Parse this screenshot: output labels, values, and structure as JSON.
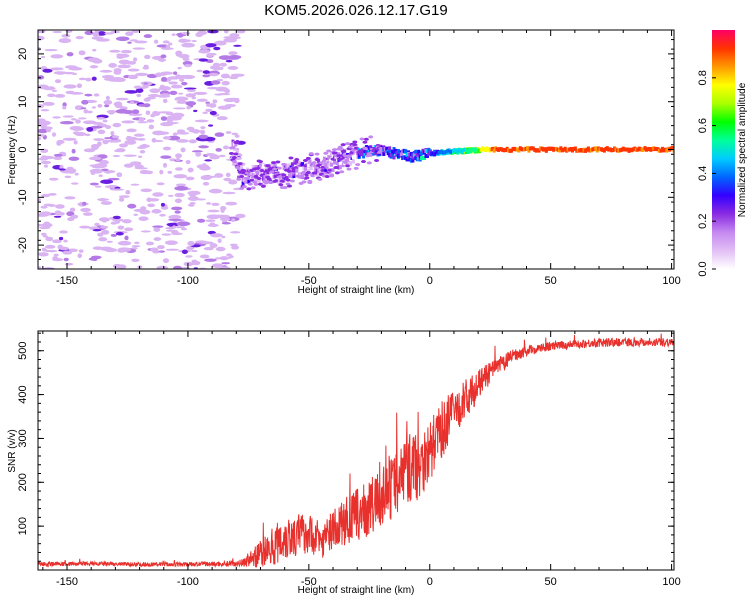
{
  "chart_data": [
    {
      "type": "heatmap",
      "title": "KOM5.2026.026.12.17.G19",
      "xlabel": "Height of straight line (km)",
      "ylabel": "Frequency (Hz)",
      "xlim": [
        -162,
        101
      ],
      "ylim": [
        -25,
        25
      ],
      "xticks": [
        -150,
        -100,
        -50,
        0,
        50,
        100
      ],
      "yticks": [
        -20,
        -10,
        0,
        10,
        20
      ],
      "colorbar": {
        "label": "Normalized spectral amplitude",
        "range": [
          0,
          1
        ],
        "ticks": [
          "0.0",
          "0.2",
          "0.4",
          "0.6",
          "0.8"
        ],
        "colors": [
          "#ffffff",
          "#e2bff5",
          "#c488f0",
          "#8a2be2",
          "#3300ff",
          "#0066ff",
          "#00ccff",
          "#00ff99",
          "#00ff00",
          "#aaff00",
          "#ffff00",
          "#ff9900",
          "#ff3300",
          "#ff0066"
        ]
      },
      "ridge": [
        {
          "h": -80,
          "f": -5.5
        },
        {
          "h": -70,
          "f": -5
        },
        {
          "h": -60,
          "f": -5
        },
        {
          "h": -50,
          "f": -4
        },
        {
          "h": -40,
          "f": -2.5
        },
        {
          "h": -30,
          "f": -1
        },
        {
          "h": -25,
          "f": 0
        },
        {
          "h": -15,
          "f": -0.8
        },
        {
          "h": -8,
          "f": -1.5
        },
        {
          "h": 0,
          "f": -0.8
        },
        {
          "h": 10,
          "f": -0.4
        },
        {
          "h": 22,
          "f": 0
        },
        {
          "h": 101,
          "f": 0
        }
      ],
      "noise_region": {
        "h_min": -162,
        "h_max": -78,
        "f_min": -25,
        "f_max": 25
      }
    },
    {
      "type": "line",
      "xlabel": "Height of straight line (km)",
      "ylabel": "SNR (v/v)",
      "xlim": [
        -162,
        101
      ],
      "ylim": [
        0,
        545
      ],
      "xticks": [
        -150,
        -100,
        -50,
        0,
        50,
        100
      ],
      "yticks": [
        100,
        200,
        300,
        400,
        500
      ],
      "color": "#e8302c",
      "series": [
        {
          "name": "SNR",
          "x": [
            -162,
            -140,
            -120,
            -100,
            -85,
            -78,
            -72,
            -65,
            -60,
            -55,
            -50,
            -45,
            -40,
            -35,
            -30,
            -25,
            -20,
            -15,
            -10,
            -5,
            0,
            5,
            10,
            15,
            20,
            25,
            30,
            35,
            40,
            50,
            60,
            70,
            80,
            90,
            101
          ],
          "y_mean": [
            14,
            14,
            13,
            13,
            14,
            16,
            30,
            55,
            75,
            80,
            85,
            65,
            90,
            110,
            125,
            140,
            165,
            190,
            230,
            240,
            270,
            320,
            360,
            390,
            420,
            450,
            470,
            490,
            500,
            510,
            515,
            518,
            520,
            520,
            520
          ],
          "y_spread": [
            5,
            5,
            5,
            5,
            6,
            8,
            25,
            45,
            55,
            50,
            45,
            40,
            45,
            55,
            60,
            65,
            70,
            75,
            80,
            85,
            70,
            65,
            55,
            45,
            35,
            25,
            20,
            15,
            12,
            10,
            10,
            10,
            10,
            10,
            10
          ]
        }
      ]
    }
  ]
}
